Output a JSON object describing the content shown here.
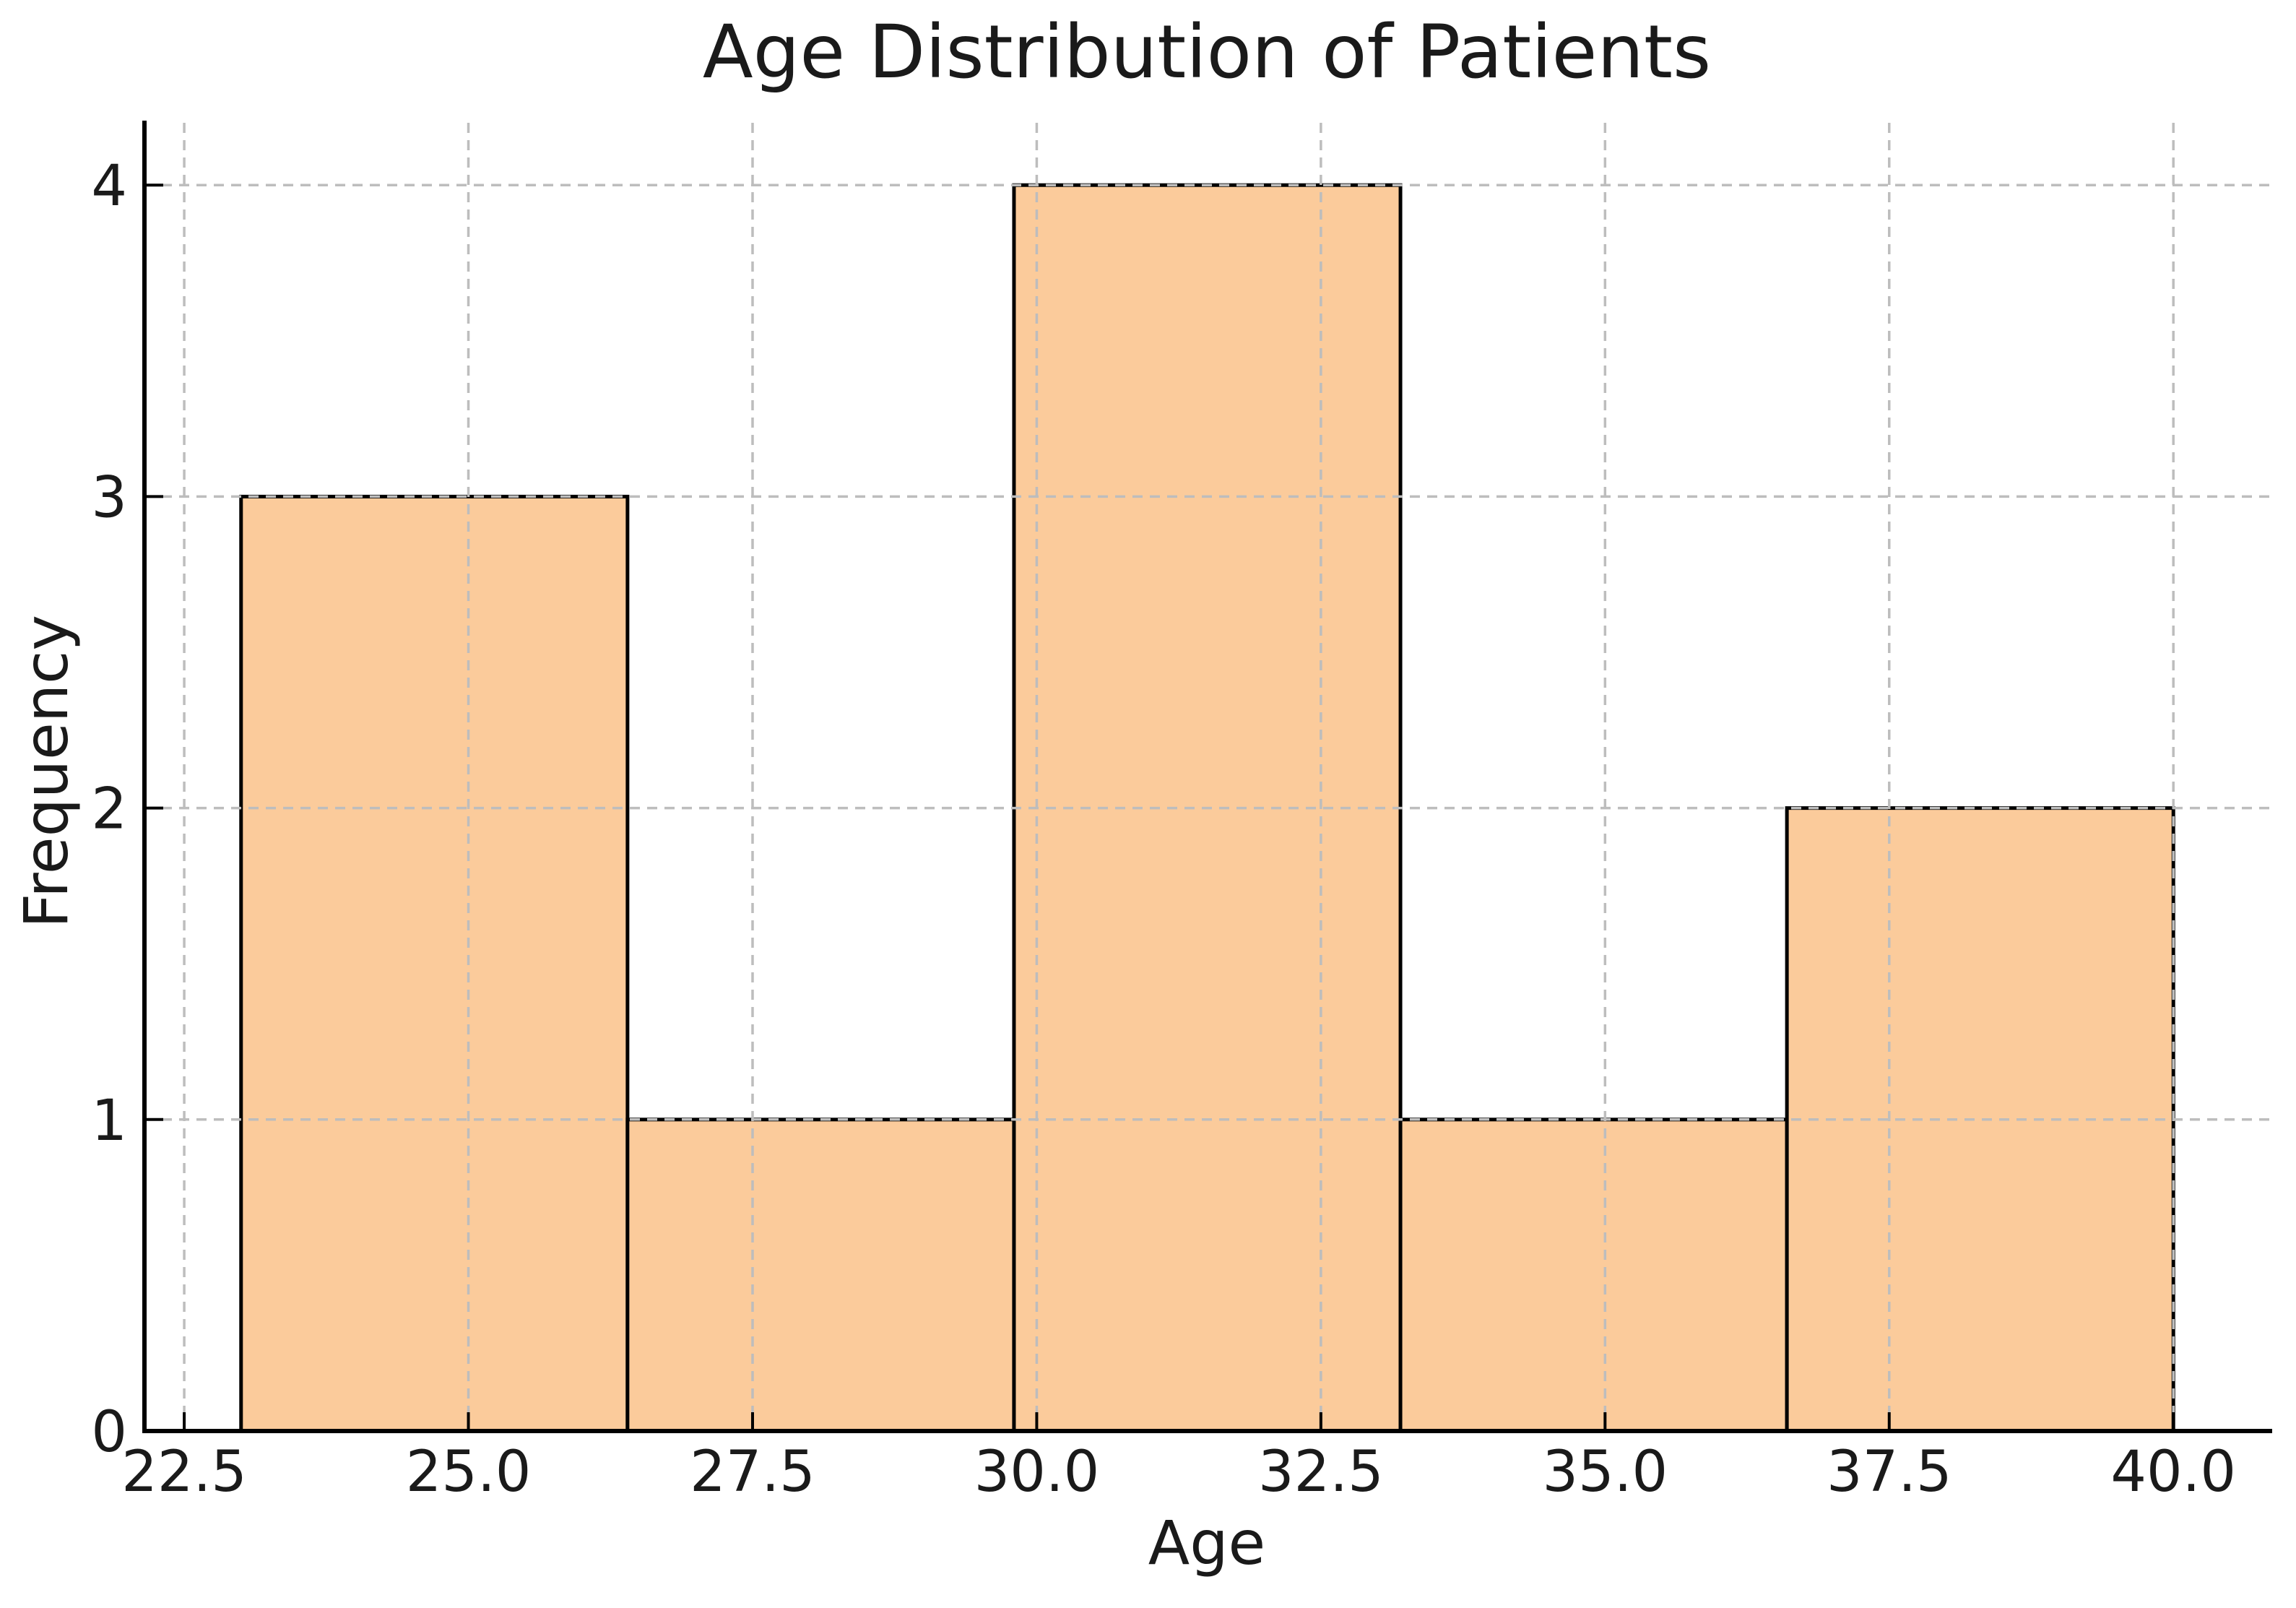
{
  "chart_data": {
    "type": "bar",
    "subtype": "histogram",
    "title": "Age Distribution of Patients",
    "xlabel": "Age",
    "ylabel": "Frequency",
    "bin_edges": [
      23.0,
      26.4,
      29.8,
      33.2,
      36.6,
      40.0
    ],
    "counts": [
      3,
      1,
      4,
      1,
      2
    ],
    "xticks": [
      "22.5",
      "25.0",
      "27.5",
      "30.0",
      "32.5",
      "35.0",
      "37.5",
      "40.0"
    ],
    "xtick_values": [
      22.5,
      25.0,
      27.5,
      30.0,
      32.5,
      35.0,
      37.5,
      40.0
    ],
    "yticks": [
      "0",
      "1",
      "2",
      "3",
      "4"
    ],
    "ytick_values": [
      0,
      1,
      2,
      3,
      4
    ],
    "xlim": [
      22.15,
      40.85
    ],
    "ylim": [
      0,
      4.2
    ],
    "grid": true,
    "grid_style": "dashed",
    "grid_on_top": true,
    "legend": null,
    "colors": {
      "bar_fill": "#FBCB9B",
      "bar_edge": "#000000",
      "grid": "#BDBDBD",
      "spine": "#000000",
      "tick": "#000000",
      "text": "#1a1a1a",
      "background": "#ffffff"
    }
  }
}
